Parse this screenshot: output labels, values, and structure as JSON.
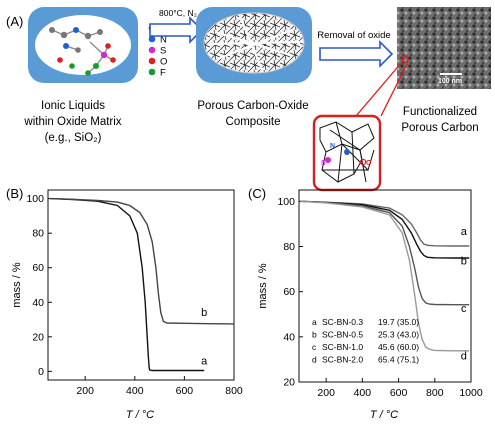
{
  "schematic": {
    "panel_label": "(A)",
    "arrow1_label": "800°C, N₂",
    "arrow2_label": "Removal of oxide",
    "legend": [
      {
        "symbol": "C",
        "color": "#111111"
      },
      {
        "symbol": "N",
        "color": "#1f5fd6"
      },
      {
        "symbol": "S",
        "color": "#d02bd0"
      },
      {
        "symbol": "O",
        "color": "#e01e1e"
      },
      {
        "symbol": "F",
        "color": "#1a9a2a"
      }
    ],
    "caption1": [
      "Ionic Liquids",
      "within Oxide Matrix",
      "(e.g., SiO₂)"
    ],
    "caption2": [
      "Porous Carbon-Oxide",
      "Composite"
    ],
    "caption3": [
      "Functionalized",
      "Porous Carbon"
    ],
    "sem_scale": "100 nm",
    "inset_labels": [
      "N",
      "S",
      "O"
    ]
  },
  "chart_data": [
    {
      "panel_label": "(B)",
      "type": "line",
      "xlabel": "T / °C",
      "ylabel": "mass / %",
      "xlim": [
        50,
        800
      ],
      "ylim": [
        -5,
        105
      ],
      "xticks": [
        200,
        400,
        600,
        800
      ],
      "yticks": [
        0,
        20,
        40,
        60,
        80,
        100
      ],
      "grid": false,
      "series": [
        {
          "name": "a",
          "color": "#111111",
          "x": [
            60,
            150,
            250,
            330,
            380,
            410,
            430,
            442,
            450,
            455,
            458,
            460,
            470,
            500,
            600,
            680
          ],
          "y": [
            100,
            99.5,
            98.5,
            96,
            90,
            80,
            60,
            40,
            20,
            8,
            2,
            0.8,
            0.5,
            0.5,
            0.5,
            0.5
          ]
        },
        {
          "name": "b",
          "color": "#444444",
          "x": [
            60,
            150,
            250,
            330,
            380,
            420,
            450,
            470,
            485,
            495,
            505,
            515,
            530,
            600,
            700,
            800
          ],
          "y": [
            100,
            99.6,
            99,
            98,
            96,
            92,
            85,
            75,
            60,
            45,
            34,
            29,
            28,
            27.8,
            27.6,
            27.5
          ]
        }
      ],
      "series_labels_at": [
        {
          "name": "a",
          "x": 680,
          "y": 4
        },
        {
          "name": "b",
          "x": 680,
          "y": 32
        }
      ]
    },
    {
      "panel_label": "(C)",
      "type": "line",
      "xlabel": "T / °C",
      "ylabel": "mass / %",
      "xlim": [
        50,
        1000
      ],
      "ylim": [
        20,
        105
      ],
      "xticks": [
        200,
        400,
        600,
        800,
        1000
      ],
      "yticks": [
        20,
        40,
        60,
        80,
        100
      ],
      "grid": false,
      "series": [
        {
          "name": "a",
          "color": "#666666",
          "x": [
            60,
            200,
            400,
            550,
            620,
            670,
            700,
            720,
            740,
            760,
            800,
            900,
            990
          ],
          "y": [
            100,
            99.6,
            98.8,
            97,
            94,
            90,
            86,
            83,
            81,
            80.5,
            80.3,
            80.2,
            80.2
          ]
        },
        {
          "name": "b",
          "color": "#111111",
          "x": [
            60,
            200,
            400,
            550,
            620,
            670,
            700,
            720,
            740,
            760,
            800,
            900,
            990
          ],
          "y": [
            100,
            99.5,
            98.5,
            96,
            92,
            86,
            81,
            78,
            76,
            75.2,
            75,
            74.9,
            74.9
          ]
        },
        {
          "name": "c",
          "color": "#555555",
          "x": [
            60,
            200,
            400,
            550,
            620,
            660,
            690,
            710,
            730,
            750,
            770,
            800,
            900,
            990
          ],
          "y": [
            100,
            99.4,
            98,
            95,
            89,
            80,
            70,
            62,
            57,
            55,
            54.5,
            54.3,
            54.2,
            54.2
          ]
        },
        {
          "name": "d",
          "color": "#999999",
          "x": [
            60,
            200,
            400,
            550,
            620,
            660,
            690,
            710,
            730,
            750,
            770,
            800,
            900,
            990
          ],
          "y": [
            100,
            99.3,
            97.5,
            94,
            86,
            74,
            58,
            46,
            39,
            35.5,
            34.5,
            34,
            33.8,
            33.8
          ]
        }
      ],
      "series_labels_at": [
        {
          "name": "a",
          "x": 960,
          "y": 85
        },
        {
          "name": "b",
          "x": 960,
          "y": 72
        },
        {
          "name": "c",
          "x": 960,
          "y": 51
        },
        {
          "name": "d",
          "x": 960,
          "y": 30
        }
      ],
      "table": [
        {
          "label": "a",
          "sample": "SC-BN-0.3",
          "value": "19.7 (35.0)"
        },
        {
          "label": "b",
          "sample": "SC-BN-0.5",
          "value": "25.3 (43.0)"
        },
        {
          "label": "c",
          "sample": "SC-BN-1.0",
          "value": "45.6 (60.0)"
        },
        {
          "label": "d",
          "sample": "SC-BN-2.0",
          "value": "65.4 (75.1)"
        }
      ]
    }
  ]
}
